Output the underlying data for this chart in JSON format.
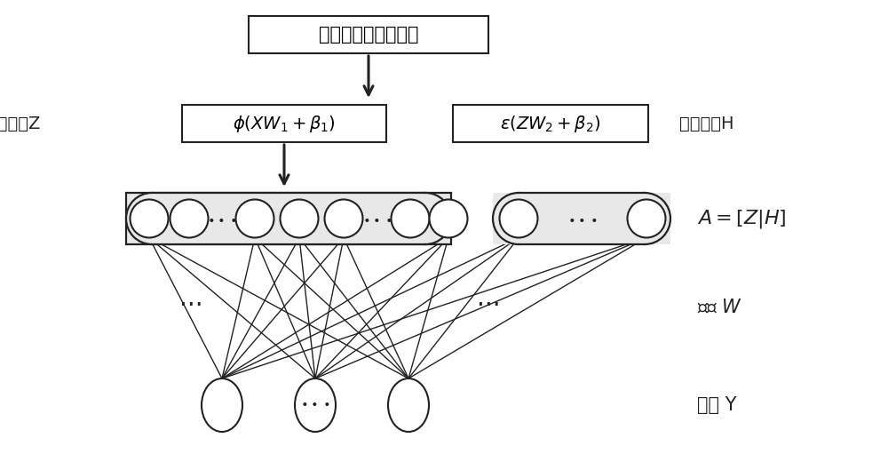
{
  "bg_color": "#ffffff",
  "input_box_text": "检测到的车速和车流",
  "feature_label": "特征节点Z",
  "enhance_label": "增强节点H",
  "phi_box_text": "$\\phi(XW_1 + \\beta_1)$",
  "epsilon_box_text": "$\\varepsilon(ZW_2 + \\beta_2)$",
  "a_label": "$A=[Z|H]$",
  "weight_label": "权重 $W$",
  "output_label": "输出 Y",
  "line_color": "#222222",
  "node_facecolor": "#ffffff",
  "node_edgecolor": "#222222"
}
